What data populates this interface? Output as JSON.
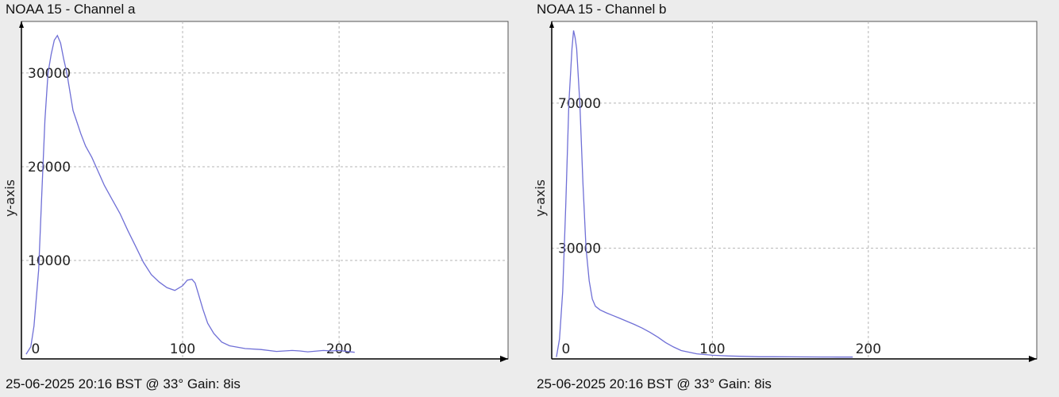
{
  "chart_data": [
    {
      "type": "line",
      "title": "NOAA 15 - Channel a",
      "footer": "25-06-2025 20:16 BST @ 33° Gain: 8is",
      "ylabel": "y-axis",
      "xlim": [
        -3,
        308
      ],
      "ylim": [
        -500,
        35500
      ],
      "xticks": [
        0,
        100,
        200
      ],
      "yticks": [
        10000,
        20000,
        30000
      ],
      "grid": true,
      "color": "#6f6fd6",
      "series": [
        {
          "x": [
            0,
            3,
            5,
            8,
            10,
            12,
            14,
            16,
            18,
            20,
            22,
            24,
            26,
            28,
            30,
            32,
            35,
            38,
            42,
            46,
            50,
            55,
            60,
            65,
            70,
            75,
            80,
            85,
            90,
            95,
            100,
            103,
            106,
            108,
            110,
            113,
            116,
            120,
            125,
            130,
            140,
            150,
            160,
            170,
            175,
            180,
            190,
            195,
            200,
            205,
            210
          ],
          "y": [
            0,
            800,
            3000,
            9000,
            17000,
            25000,
            30000,
            32000,
            33500,
            34000,
            33200,
            31500,
            30000,
            28000,
            26000,
            25000,
            23500,
            22200,
            21000,
            19500,
            18000,
            16500,
            15000,
            13200,
            11500,
            9800,
            8500,
            7700,
            7100,
            6800,
            7300,
            7900,
            8000,
            7600,
            6500,
            4800,
            3300,
            2200,
            1300,
            900,
            600,
            500,
            300,
            400,
            350,
            250,
            400,
            350,
            400,
            300,
            200
          ]
        }
      ]
    },
    {
      "type": "line",
      "title": "NOAA 15 - Channel b",
      "footer": "25-06-2025 20:16 BST @ 33° Gain: 8is",
      "ylabel": "y-axis",
      "xlim": [
        -3,
        308
      ],
      "ylim": [
        -500,
        92500
      ],
      "xticks": [
        0,
        100,
        200
      ],
      "yticks": [
        30000,
        70000
      ],
      "grid": true,
      "color": "#6f6fd6",
      "series": [
        {
          "x": [
            0,
            2,
            4,
            6,
            8,
            10,
            11,
            12,
            13,
            15,
            17,
            19,
            21,
            23,
            25,
            28,
            32,
            36,
            40,
            45,
            50,
            55,
            60,
            65,
            70,
            75,
            80,
            90,
            100,
            110,
            120,
            130,
            140,
            150,
            160,
            170,
            175,
            180,
            185,
            190
          ],
          "y": [
            0,
            5000,
            18000,
            42000,
            70000,
            85000,
            90000,
            88000,
            85000,
            70000,
            48000,
            30000,
            21000,
            16000,
            14000,
            13000,
            12200,
            11500,
            10800,
            9900,
            9000,
            8000,
            6800,
            5500,
            4000,
            2800,
            1800,
            900,
            500,
            300,
            200,
            100,
            80,
            60,
            40,
            30,
            20,
            10,
            5,
            0
          ]
        }
      ]
    }
  ]
}
